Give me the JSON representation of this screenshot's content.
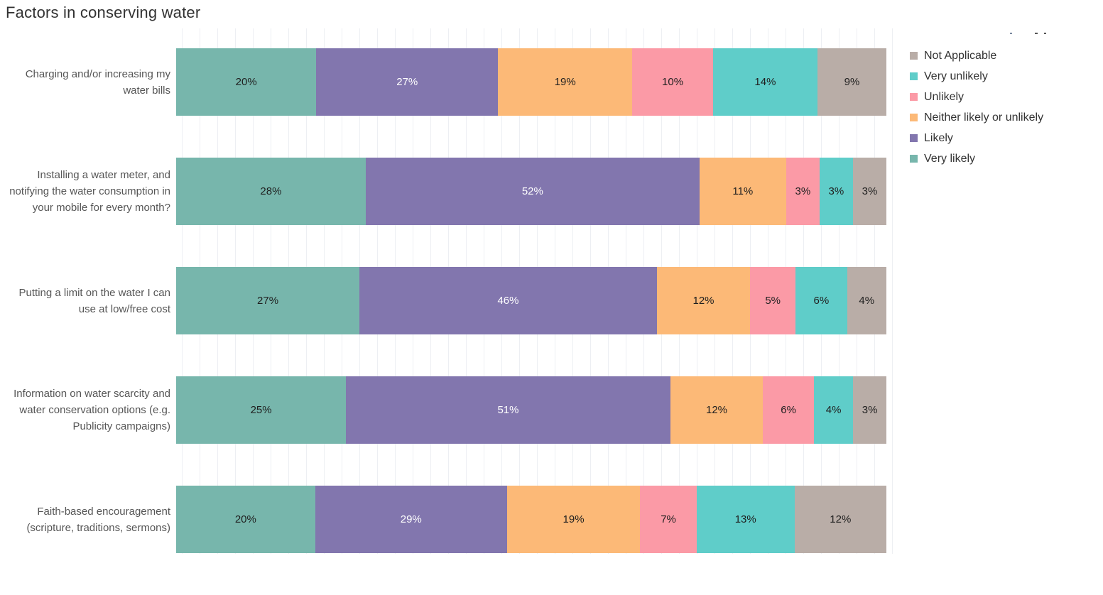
{
  "title": "Factors in conserving water",
  "legend": {
    "items": [
      {
        "label": "Not Applicable",
        "color": "#b9ada7"
      },
      {
        "label": "Very unlikely",
        "color": "#5fcdc9"
      },
      {
        "label": "Unlikely",
        "color": "#fb9aa6"
      },
      {
        "label": "Neither likely or unlikely",
        "color": "#fcb977"
      },
      {
        "label": "Likely",
        "color": "#8276ae"
      },
      {
        "label": "Very likely",
        "color": "#77b6ac"
      }
    ]
  },
  "chart_data": {
    "type": "bar",
    "orientation": "horizontal",
    "stacked": true,
    "percent_scale": true,
    "unit": "%",
    "title": "Factors in conserving water",
    "xlabel": "",
    "ylabel": "",
    "xlim": [
      0,
      100
    ],
    "gridlines": {
      "visible": true,
      "interval_pct": 2.5
    },
    "legend_position": "top-right",
    "legend_order_top_to_bottom": [
      "Not Applicable",
      "Very unlikely",
      "Unlikely",
      "Neither likely or unlikely",
      "Likely",
      "Very likely"
    ],
    "categories": [
      "Charging and/or increasing my water bills",
      "Installing a water meter, and notifying the water consumption in your mobile for every month?",
      "Putting a limit on the water I can use at low/free cost",
      "Information on water scarcity and water conservation options (e.g. Publicity campaigns)",
      "Faith-based encouragement (scripture, traditions, sermons)"
    ],
    "series": [
      {
        "name": "Very likely",
        "color": "#77b6ac",
        "label_color": "#1f1f1f",
        "values": [
          20,
          28,
          27,
          25,
          20
        ]
      },
      {
        "name": "Likely",
        "color": "#8276ae",
        "label_color": "#ffffff",
        "values": [
          27,
          52,
          46,
          51,
          29
        ]
      },
      {
        "name": "Neither likely or unlikely",
        "color": "#fcb977",
        "label_color": "#1f1f1f",
        "values": [
          19,
          11,
          12,
          12,
          19
        ]
      },
      {
        "name": "Unlikely",
        "color": "#fb9aa6",
        "label_color": "#1f1f1f",
        "values": [
          10,
          3,
          5,
          6,
          7
        ]
      },
      {
        "name": "Very unlikely",
        "color": "#5fcdc9",
        "label_color": "#1f1f1f",
        "values": [
          14,
          3,
          6,
          4,
          13
        ]
      },
      {
        "name": "Not Applicable",
        "color": "#b9ada7",
        "label_color": "#1f1f1f",
        "values": [
          9,
          3,
          4,
          3,
          12
        ]
      }
    ]
  }
}
